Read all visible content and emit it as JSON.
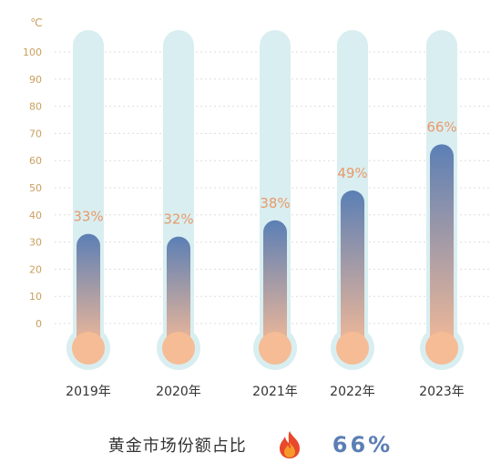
{
  "chart_data": {
    "type": "bar",
    "categories": [
      "2019年",
      "2020年",
      "2021年",
      "2022年",
      "2023年"
    ],
    "values": [
      33,
      32,
      38,
      49,
      66
    ],
    "value_labels": [
      "33%",
      "32%",
      "38%",
      "49%",
      "66%"
    ],
    "unit_label": "℃",
    "y_ticks": [
      "100",
      "90",
      "80",
      "70",
      "60",
      "50",
      "40",
      "30",
      "20",
      "10",
      "0"
    ],
    "ylim": [
      0,
      100
    ],
    "grid": true,
    "style": "thermometer"
  },
  "footer": {
    "label": "黄金市场份额占比",
    "value": "66%",
    "icon": "flame-icon"
  },
  "colors": {
    "tube": "#d9eef0",
    "mercury_top": "#5b7fb5",
    "mercury_bottom": "#f3b997",
    "bulb": "#f5bc95",
    "label": "#e89a6a",
    "tick": "#c9a05e",
    "footer_value": "#5b7fb5"
  }
}
